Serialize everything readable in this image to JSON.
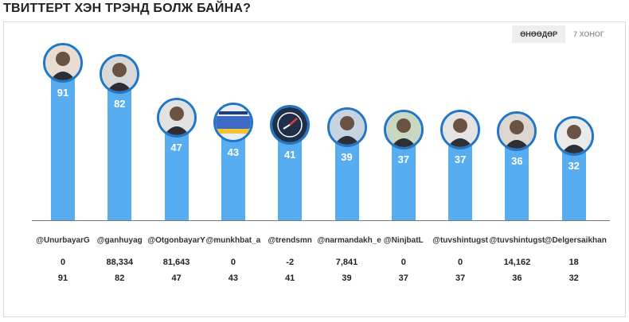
{
  "title": "ТВИТТЕРТ ХЭН ТРЭНД БОЛЖ БАЙНА?",
  "tabs": [
    {
      "label": "ӨНӨӨДӨР",
      "active": true
    },
    {
      "label": "7 ХОНОГ",
      "active": false
    }
  ],
  "colors": {
    "bar": "#58adf0",
    "avatar_border": "#2176c7"
  },
  "chart_data": {
    "type": "bar",
    "categories": [
      "@UnurbayarG",
      "@ganhuyag",
      "@OtgonbayarY",
      "@munkhbat_a",
      "@trendsmn",
      "@narmandakh_e",
      "@NinjbatL",
      "@tuvshintugst",
      "@tuvshintugst",
      "@Delgersaikhan"
    ],
    "values": [
      91,
      82,
      47,
      43,
      41,
      39,
      37,
      37,
      36,
      32
    ],
    "ylim": [
      0,
      100
    ],
    "secondary_row": [
      "0",
      "88,334",
      "81,643",
      "0",
      "-2",
      "7,841",
      "0",
      "0",
      "14,162",
      "18"
    ],
    "score_row": [
      "91",
      "82",
      "47",
      "43",
      "41",
      "39",
      "37",
      "37",
      "36",
      "32"
    ],
    "avatar_icons": [
      "profile-photo-icon",
      "profile-photo-icon",
      "profile-photo-icon",
      "logo-icon",
      "clock-icon",
      "profile-photo-icon",
      "profile-photo-icon",
      "profile-photo-icon",
      "profile-photo-icon",
      "profile-photo-icon"
    ]
  }
}
